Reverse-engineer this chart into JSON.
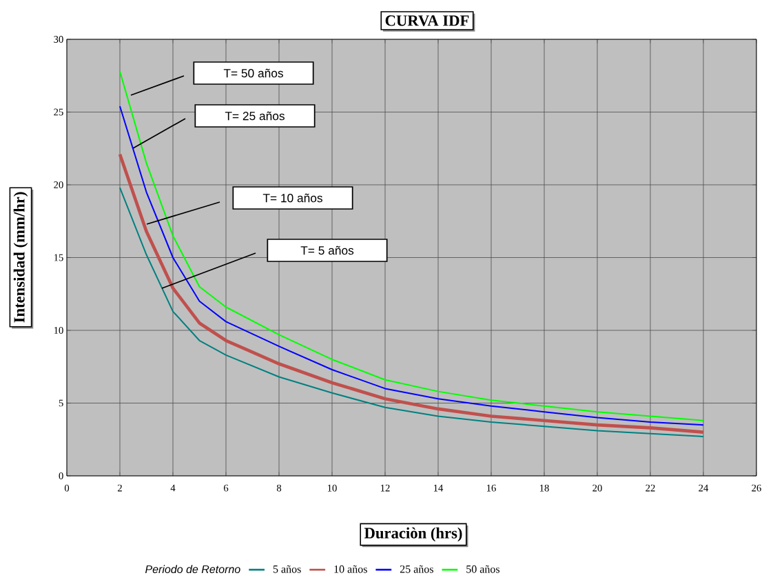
{
  "chart_data": {
    "type": "line",
    "title": "CURVA IDF",
    "xlabel": "Duraciòn (hrs)",
    "ylabel": "Intensidad (mm/hr)",
    "legend_title": "Periodo de Retorno",
    "x": [
      2,
      3,
      4,
      5,
      6,
      8,
      10,
      12,
      14,
      16,
      18,
      20,
      22,
      24
    ],
    "series": [
      {
        "name": "5  años",
        "color": "#008080",
        "values": [
          19.8,
          15.2,
          11.3,
          9.3,
          8.3,
          6.8,
          5.7,
          4.7,
          4.1,
          3.7,
          3.4,
          3.1,
          2.9,
          2.7
        ]
      },
      {
        "name": "10  años",
        "color": "#c0504d",
        "values": [
          22.1,
          16.8,
          12.9,
          10.5,
          9.3,
          7.7,
          6.4,
          5.3,
          4.6,
          4.1,
          3.8,
          3.5,
          3.3,
          3.0
        ]
      },
      {
        "name": "25  años",
        "color": "#0000ff",
        "values": [
          25.4,
          19.5,
          15.0,
          12.0,
          10.6,
          8.9,
          7.3,
          6.0,
          5.3,
          4.8,
          4.4,
          4.0,
          3.7,
          3.5
        ]
      },
      {
        "name": "50  años",
        "color": "#00ff00",
        "values": [
          27.8,
          21.5,
          16.5,
          13.0,
          11.6,
          9.7,
          8.0,
          6.6,
          5.8,
          5.2,
          4.8,
          4.4,
          4.1,
          3.8
        ]
      }
    ],
    "annotations": [
      "T= 50 años",
      "T= 25 años",
      "T= 10 años",
      "T= 5 años"
    ],
    "xlim": [
      0,
      26
    ],
    "ylim": [
      0,
      30
    ],
    "xticks": [
      0,
      2,
      4,
      6,
      8,
      10,
      12,
      14,
      16,
      18,
      20,
      22,
      24,
      26
    ],
    "yticks": [
      0,
      5,
      10,
      15,
      20,
      25,
      30
    ],
    "grid": true,
    "legend": "bottom",
    "marker": "none",
    "line_style": "solid"
  }
}
